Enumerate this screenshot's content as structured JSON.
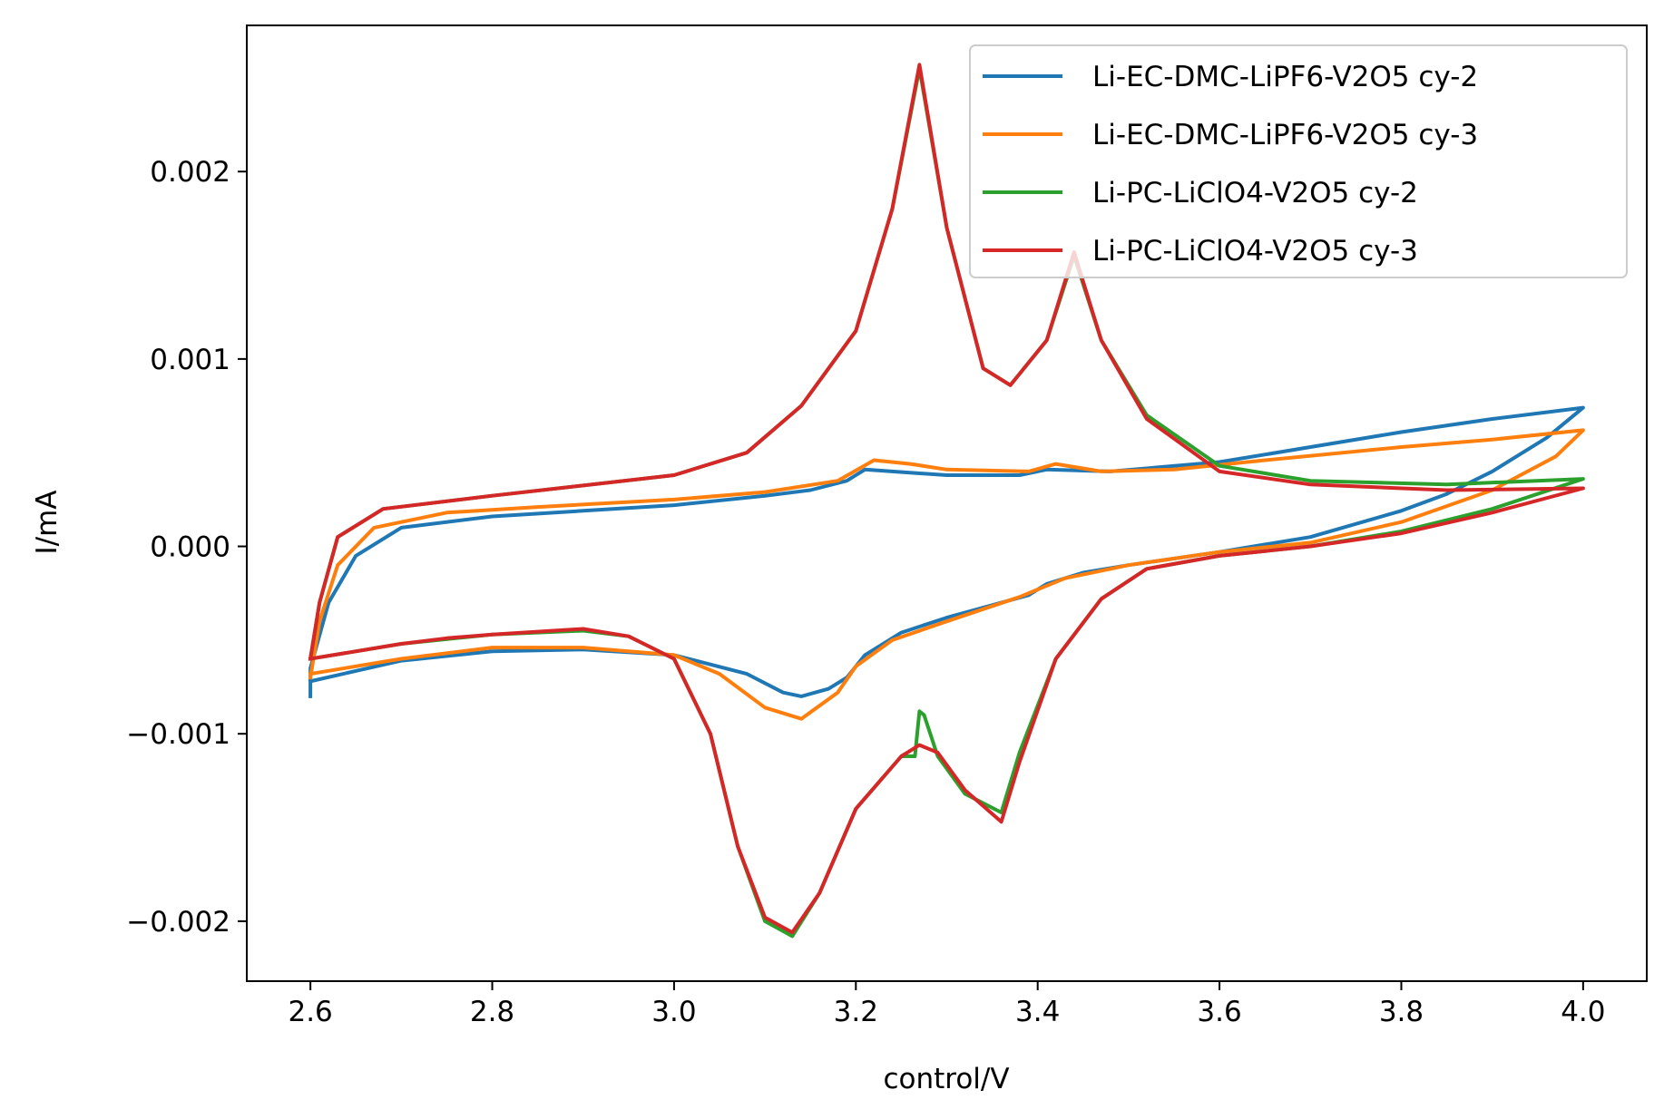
{
  "chart_data": {
    "type": "line",
    "xlabel": "control/V",
    "ylabel": "I/mA",
    "xlim": [
      2.53,
      4.07
    ],
    "ylim": [
      -0.00232,
      0.00278
    ],
    "xticks": [
      2.6,
      2.8,
      3.0,
      3.2,
      3.4,
      3.6,
      3.8,
      4.0
    ],
    "xtick_labels": [
      "2.6",
      "2.8",
      "3.0",
      "3.2",
      "3.4",
      "3.6",
      "3.8",
      "4.0"
    ],
    "yticks": [
      -0.002,
      -0.001,
      0.0,
      0.001,
      0.002
    ],
    "ytick_labels": [
      "−0.002",
      "−0.001",
      "0.000",
      "0.001",
      "0.002"
    ],
    "grid": false,
    "legend_position": "top-right",
    "series": [
      {
        "name": "Li-EC-DMC-LiPF6-V2O5 cy-2",
        "color": "#1f77b4",
        "points": [
          [
            2.6,
            -0.0008
          ],
          [
            2.6,
            -0.00065
          ],
          [
            2.62,
            -0.0003
          ],
          [
            2.65,
            -5e-05
          ],
          [
            2.7,
            0.0001
          ],
          [
            2.8,
            0.00016
          ],
          [
            2.9,
            0.00019
          ],
          [
            3.0,
            0.00022
          ],
          [
            3.1,
            0.00027
          ],
          [
            3.15,
            0.0003
          ],
          [
            3.19,
            0.00035
          ],
          [
            3.21,
            0.00041
          ],
          [
            3.24,
            0.0004
          ],
          [
            3.3,
            0.00038
          ],
          [
            3.38,
            0.00038
          ],
          [
            3.41,
            0.00041
          ],
          [
            3.48,
            0.0004
          ],
          [
            3.6,
            0.00045
          ],
          [
            3.7,
            0.00053
          ],
          [
            3.8,
            0.00061
          ],
          [
            3.9,
            0.00068
          ],
          [
            4.0,
            0.00074
          ],
          [
            3.96,
            0.00058
          ],
          [
            3.9,
            0.0004
          ],
          [
            3.85,
            0.00028
          ],
          [
            3.8,
            0.00019
          ],
          [
            3.7,
            5e-05
          ],
          [
            3.6,
            -3e-05
          ],
          [
            3.5,
            -0.0001
          ],
          [
            3.45,
            -0.00014
          ],
          [
            3.41,
            -0.0002
          ],
          [
            3.39,
            -0.00026
          ],
          [
            3.3,
            -0.00038
          ],
          [
            3.25,
            -0.00046
          ],
          [
            3.21,
            -0.00058
          ],
          [
            3.19,
            -0.0007
          ],
          [
            3.17,
            -0.00076
          ],
          [
            3.14,
            -0.0008
          ],
          [
            3.12,
            -0.00078
          ],
          [
            3.08,
            -0.00068
          ],
          [
            3.0,
            -0.00058
          ],
          [
            2.9,
            -0.00055
          ],
          [
            2.8,
            -0.00056
          ],
          [
            2.7,
            -0.00061
          ],
          [
            2.6,
            -0.00072
          ]
        ]
      },
      {
        "name": "Li-EC-DMC-LiPF6-V2O5 cy-3",
        "color": "#ff7f0e",
        "points": [
          [
            2.6,
            -0.0007
          ],
          [
            2.61,
            -0.0004
          ],
          [
            2.63,
            -0.0001
          ],
          [
            2.67,
            0.0001
          ],
          [
            2.75,
            0.00018
          ],
          [
            2.85,
            0.00021
          ],
          [
            3.0,
            0.00025
          ],
          [
            3.1,
            0.00029
          ],
          [
            3.18,
            0.00035
          ],
          [
            3.22,
            0.00046
          ],
          [
            3.26,
            0.00044
          ],
          [
            3.3,
            0.00041
          ],
          [
            3.39,
            0.0004
          ],
          [
            3.42,
            0.00044
          ],
          [
            3.47,
            0.0004
          ],
          [
            3.55,
            0.00041
          ],
          [
            3.65,
            0.00046
          ],
          [
            3.8,
            0.00053
          ],
          [
            3.9,
            0.00057
          ],
          [
            4.0,
            0.00062
          ],
          [
            3.97,
            0.00048
          ],
          [
            3.9,
            0.0003
          ],
          [
            3.8,
            0.00013
          ],
          [
            3.7,
            2e-05
          ],
          [
            3.6,
            -3e-05
          ],
          [
            3.5,
            -0.0001
          ],
          [
            3.43,
            -0.00017
          ],
          [
            3.38,
            -0.00027
          ],
          [
            3.3,
            -0.0004
          ],
          [
            3.24,
            -0.0005
          ],
          [
            3.2,
            -0.00064
          ],
          [
            3.18,
            -0.00078
          ],
          [
            3.14,
            -0.00092
          ],
          [
            3.1,
            -0.00086
          ],
          [
            3.05,
            -0.00068
          ],
          [
            3.0,
            -0.00058
          ],
          [
            2.9,
            -0.00054
          ],
          [
            2.8,
            -0.00054
          ],
          [
            2.7,
            -0.0006
          ],
          [
            2.6,
            -0.00068
          ]
        ]
      },
      {
        "name": "Li-PC-LiClO4-V2O5 cy-2",
        "color": "#2ca02c",
        "points": [
          [
            2.6,
            -0.0006
          ],
          [
            2.61,
            -0.0003
          ],
          [
            2.63,
            5e-05
          ],
          [
            2.68,
            0.0002
          ],
          [
            2.8,
            0.00027
          ],
          [
            3.0,
            0.00038
          ],
          [
            3.08,
            0.0005
          ],
          [
            3.14,
            0.00075
          ],
          [
            3.2,
            0.00115
          ],
          [
            3.24,
            0.0018
          ],
          [
            3.27,
            0.00255
          ],
          [
            3.3,
            0.0017
          ],
          [
            3.34,
            0.00095
          ],
          [
            3.37,
            0.00086
          ],
          [
            3.41,
            0.0011
          ],
          [
            3.44,
            0.00155
          ],
          [
            3.47,
            0.0011
          ],
          [
            3.52,
            0.0007
          ],
          [
            3.6,
            0.00043
          ],
          [
            3.7,
            0.00035
          ],
          [
            3.85,
            0.00033
          ],
          [
            4.0,
            0.00036
          ],
          [
            3.9,
            0.0002
          ],
          [
            3.8,
            8e-05
          ],
          [
            3.7,
            0.0
          ],
          [
            3.6,
            -5e-05
          ],
          [
            3.52,
            -0.00012
          ],
          [
            3.47,
            -0.00028
          ],
          [
            3.42,
            -0.0006
          ],
          [
            3.38,
            -0.0011
          ],
          [
            3.36,
            -0.00142
          ],
          [
            3.32,
            -0.00132
          ],
          [
            3.29,
            -0.00112
          ],
          [
            3.275,
            -0.0009
          ],
          [
            3.27,
            -0.00088
          ],
          [
            3.265,
            -0.00112
          ],
          [
            3.25,
            -0.00112
          ],
          [
            3.2,
            -0.0014
          ],
          [
            3.16,
            -0.00185
          ],
          [
            3.13,
            -0.00208
          ],
          [
            3.1,
            -0.002
          ],
          [
            3.07,
            -0.0016
          ],
          [
            3.04,
            -0.001
          ],
          [
            3.0,
            -0.0006
          ],
          [
            2.95,
            -0.00048
          ],
          [
            2.9,
            -0.00045
          ],
          [
            2.8,
            -0.00047
          ],
          [
            2.7,
            -0.00052
          ],
          [
            2.6,
            -0.0006
          ]
        ]
      },
      {
        "name": "Li-PC-LiClO4-V2O5 cy-3",
        "color": "#d62728",
        "points": [
          [
            2.6,
            -0.0006
          ],
          [
            2.61,
            -0.0003
          ],
          [
            2.63,
            5e-05
          ],
          [
            2.68,
            0.0002
          ],
          [
            2.8,
            0.00027
          ],
          [
            3.0,
            0.00038
          ],
          [
            3.08,
            0.0005
          ],
          [
            3.14,
            0.00075
          ],
          [
            3.2,
            0.00115
          ],
          [
            3.24,
            0.0018
          ],
          [
            3.27,
            0.00257
          ],
          [
            3.3,
            0.0017
          ],
          [
            3.34,
            0.00095
          ],
          [
            3.37,
            0.00086
          ],
          [
            3.41,
            0.0011
          ],
          [
            3.44,
            0.00157
          ],
          [
            3.47,
            0.0011
          ],
          [
            3.52,
            0.00068
          ],
          [
            3.6,
            0.0004
          ],
          [
            3.7,
            0.00033
          ],
          [
            3.85,
            0.0003
          ],
          [
            4.0,
            0.00031
          ],
          [
            3.9,
            0.00018
          ],
          [
            3.8,
            7e-05
          ],
          [
            3.7,
            0.0
          ],
          [
            3.6,
            -5e-05
          ],
          [
            3.52,
            -0.00012
          ],
          [
            3.47,
            -0.00028
          ],
          [
            3.42,
            -0.0006
          ],
          [
            3.38,
            -0.00115
          ],
          [
            3.36,
            -0.00147
          ],
          [
            3.32,
            -0.0013
          ],
          [
            3.29,
            -0.0011
          ],
          [
            3.27,
            -0.00106
          ],
          [
            3.25,
            -0.00112
          ],
          [
            3.2,
            -0.0014
          ],
          [
            3.16,
            -0.00185
          ],
          [
            3.13,
            -0.00206
          ],
          [
            3.1,
            -0.00198
          ],
          [
            3.07,
            -0.0016
          ],
          [
            3.04,
            -0.001
          ],
          [
            3.0,
            -0.0006
          ],
          [
            2.95,
            -0.00048
          ],
          [
            2.9,
            -0.00044
          ],
          [
            2.8,
            -0.00047
          ],
          [
            2.75,
            -0.00049
          ],
          [
            2.7,
            -0.00052
          ],
          [
            2.6,
            -0.0006
          ]
        ]
      }
    ]
  }
}
